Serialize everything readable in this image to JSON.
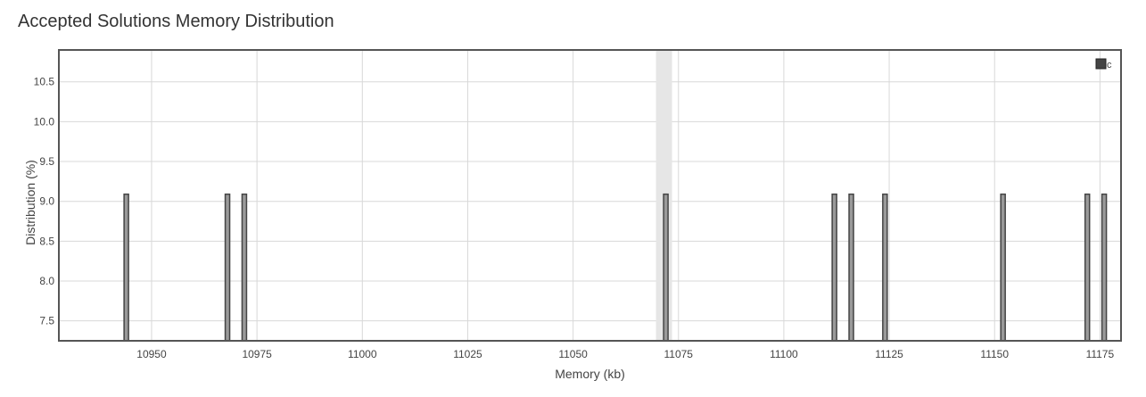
{
  "title": "Accepted Solutions Memory Distribution",
  "colors": {
    "bar_fill": "#9a9a9a",
    "bar_stroke": "#444444",
    "grid": "#d8d8d8",
    "frame": "#555555",
    "highlight": "#e6e6e6"
  },
  "chart_data": {
    "type": "bar",
    "title": "Accepted Solutions Memory Distribution",
    "xlabel": "Memory (kb)",
    "ylabel": "Distribution (%)",
    "xlim": [
      10928,
      11180
    ],
    "ylim": [
      7.25,
      10.9
    ],
    "xticks": [
      10950,
      10975,
      11000,
      11025,
      11050,
      11075,
      11100,
      11125,
      11150,
      11175
    ],
    "yticks": [
      7.5,
      8.0,
      8.5,
      9.0,
      9.5,
      10.0,
      10.5
    ],
    "ytick_labels": [
      "7.5",
      "8.0",
      "8.5",
      "9.0",
      "9.5",
      "10.0",
      "10.5"
    ],
    "highlight_x": 11072,
    "series": [
      {
        "name": "c",
        "x": [
          10944,
          10968,
          10972,
          11072,
          11112,
          11116,
          11124,
          11152,
          11172,
          11176
        ],
        "values": [
          9.09,
          9.09,
          9.09,
          9.09,
          9.09,
          9.09,
          9.09,
          9.09,
          9.09,
          9.09
        ]
      }
    ],
    "legend": {
      "position": "top-right",
      "entries": [
        "c"
      ]
    },
    "grid": true
  }
}
